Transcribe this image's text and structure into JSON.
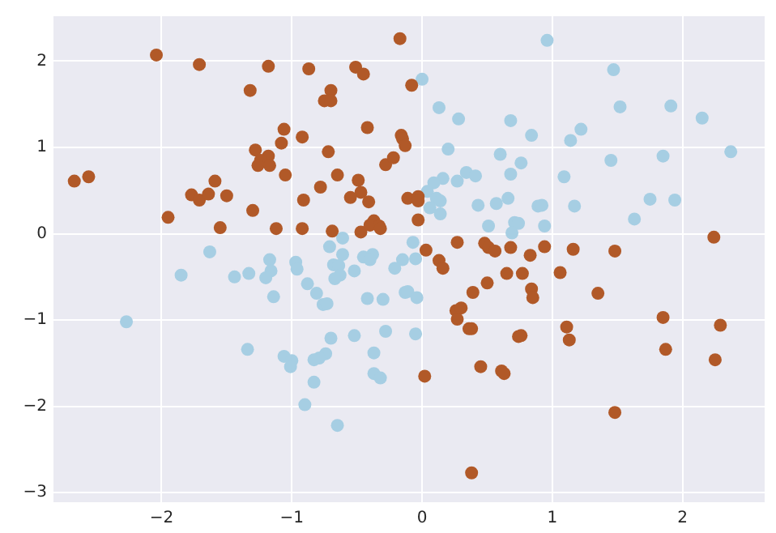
{
  "chart_data": {
    "type": "scatter",
    "marker": "circle",
    "grid": true,
    "xlim": [
      -2.83,
      2.63
    ],
    "ylim": [
      -3.11,
      2.52
    ],
    "xticks": [
      {
        "value": -2,
        "label": "−2"
      },
      {
        "value": -1,
        "label": "−1"
      },
      0,
      1,
      2
    ],
    "yticks": [
      {
        "value": -3,
        "label": "−3"
      },
      {
        "value": -2,
        "label": "−2"
      },
      {
        "value": -1,
        "label": "−1"
      },
      0,
      1,
      2
    ],
    "series": [
      {
        "color": "#b15928",
        "x": [
          -2.04,
          -1.71,
          -1.18,
          -1.32,
          -0.87,
          -0.51,
          -0.45,
          -0.17,
          -0.08,
          -0.7,
          -0.75,
          -0.7,
          -1.06,
          -0.92,
          -1.08,
          -0.42,
          -0.16,
          -0.15,
          -0.13,
          -1.28,
          -1.18,
          -1.24,
          -1.26,
          -1.17,
          -0.72,
          -0.28,
          -0.22,
          -1.05,
          -0.65,
          -0.49,
          -0.47,
          -0.55,
          -0.41,
          -0.78,
          -0.91,
          -2.67,
          -2.56,
          -1.59,
          -1.77,
          -1.71,
          -1.64,
          -1.5,
          -1.3,
          -1.95,
          -1.55,
          -1.12,
          -0.92,
          -0.69,
          -0.47,
          -0.37,
          -0.4,
          -0.33,
          -0.32,
          -0.11,
          -0.03,
          -0.03,
          -0.03,
          0.27,
          0.48,
          0.51,
          0.56,
          0.68,
          0.83,
          0.94,
          1.16,
          1.48,
          2.24,
          0.03,
          0.13,
          0.16,
          0.65,
          0.77,
          1.06,
          0.5,
          0.39,
          0.84,
          0.85,
          1.35,
          0.26,
          0.3,
          0.27,
          0.36,
          0.38,
          0.74,
          0.76,
          1.11,
          1.13,
          1.85,
          1.87,
          2.29,
          2.25,
          0.45,
          0.61,
          0.63,
          0.02,
          1.48,
          0.38
        ],
        "values": [
          2.07,
          1.96,
          1.94,
          1.66,
          1.91,
          1.93,
          1.85,
          2.26,
          1.72,
          1.66,
          1.54,
          1.54,
          1.21,
          1.12,
          1.05,
          1.23,
          1.14,
          1.1,
          1.02,
          0.97,
          0.9,
          0.85,
          0.79,
          0.79,
          0.95,
          0.8,
          0.88,
          0.68,
          0.68,
          0.62,
          0.48,
          0.42,
          0.37,
          0.54,
          0.39,
          0.61,
          0.66,
          0.61,
          0.45,
          0.39,
          0.46,
          0.44,
          0.27,
          0.19,
          0.07,
          0.06,
          0.06,
          0.03,
          0.02,
          0.15,
          0.1,
          0.09,
          0.06,
          0.41,
          0.43,
          0.38,
          0.16,
          -0.1,
          -0.11,
          -0.16,
          -0.2,
          -0.16,
          -0.25,
          -0.15,
          -0.18,
          -0.2,
          -0.04,
          -0.19,
          -0.31,
          -0.4,
          -0.46,
          -0.46,
          -0.45,
          -0.57,
          -0.68,
          -0.64,
          -0.74,
          -0.69,
          -0.89,
          -0.86,
          -0.99,
          -1.1,
          -1.1,
          -1.19,
          -1.18,
          -1.08,
          -1.23,
          -0.97,
          -1.34,
          -1.06,
          -1.46,
          -1.54,
          -1.59,
          -1.62,
          -1.65,
          -2.07,
          -2.77
        ]
      },
      {
        "color": "#a6cee3",
        "x": [
          -1.63,
          -1.17,
          -0.97,
          -0.71,
          -0.61,
          -0.61,
          -0.45,
          -0.38,
          -0.15,
          -0.07,
          -0.05,
          -1.85,
          -2.27,
          -1.44,
          -1.33,
          -1.16,
          -1.2,
          -1.14,
          -0.96,
          -0.88,
          -0.81,
          -0.76,
          -0.73,
          -0.68,
          -0.64,
          -0.63,
          -0.67,
          -0.52,
          -0.4,
          -0.42,
          -0.3,
          -0.21,
          -0.13,
          -0.11,
          -0.04,
          -1.34,
          -1.06,
          -1.0,
          -1.01,
          -0.7,
          -0.74,
          -0.79,
          -0.83,
          -0.52,
          -0.28,
          -0.05,
          -0.37,
          -0.37,
          -0.32,
          -0.83,
          -0.9,
          -0.65,
          0.96,
          0.0,
          1.47,
          0.13,
          0.28,
          0.68,
          0.84,
          1.14,
          1.22,
          1.52,
          1.91,
          2.15,
          2.37,
          0.2,
          0.6,
          0.76,
          1.45,
          1.85,
          1.09,
          0.68,
          0.34,
          0.41,
          0.27,
          0.16,
          0.09,
          0.04,
          0.11,
          0.14,
          0.06,
          0.14,
          0.43,
          0.57,
          0.66,
          0.89,
          0.92,
          1.17,
          1.75,
          1.94,
          1.63,
          0.51,
          0.71,
          0.74,
          0.69,
          0.94
        ],
        "values": [
          -0.21,
          -0.3,
          -0.33,
          -0.15,
          -0.05,
          -0.24,
          -0.27,
          -0.24,
          -0.3,
          -0.1,
          -0.29,
          -0.48,
          -1.02,
          -0.5,
          -0.46,
          -0.43,
          -0.51,
          -0.73,
          -0.41,
          -0.58,
          -0.69,
          -0.82,
          -0.81,
          -0.36,
          -0.37,
          -0.48,
          -0.52,
          -0.43,
          -0.3,
          -0.75,
          -0.76,
          -0.4,
          -0.68,
          -0.67,
          -0.74,
          -1.34,
          -1.42,
          -1.47,
          -1.54,
          -1.21,
          -1.39,
          -1.44,
          -1.46,
          -1.18,
          -1.13,
          -1.16,
          -1.38,
          -1.62,
          -1.67,
          -1.72,
          -1.98,
          -2.22,
          2.24,
          1.79,
          1.9,
          1.46,
          1.33,
          1.31,
          1.14,
          1.08,
          1.21,
          1.47,
          1.48,
          1.34,
          0.95,
          0.98,
          0.92,
          0.82,
          0.85,
          0.9,
          0.66,
          0.69,
          0.71,
          0.67,
          0.61,
          0.64,
          0.59,
          0.49,
          0.41,
          0.38,
          0.3,
          0.23,
          0.33,
          0.35,
          0.41,
          0.32,
          0.33,
          0.32,
          0.4,
          0.39,
          0.17,
          0.09,
          0.13,
          0.12,
          0.01,
          0.09
        ]
      }
    ]
  }
}
